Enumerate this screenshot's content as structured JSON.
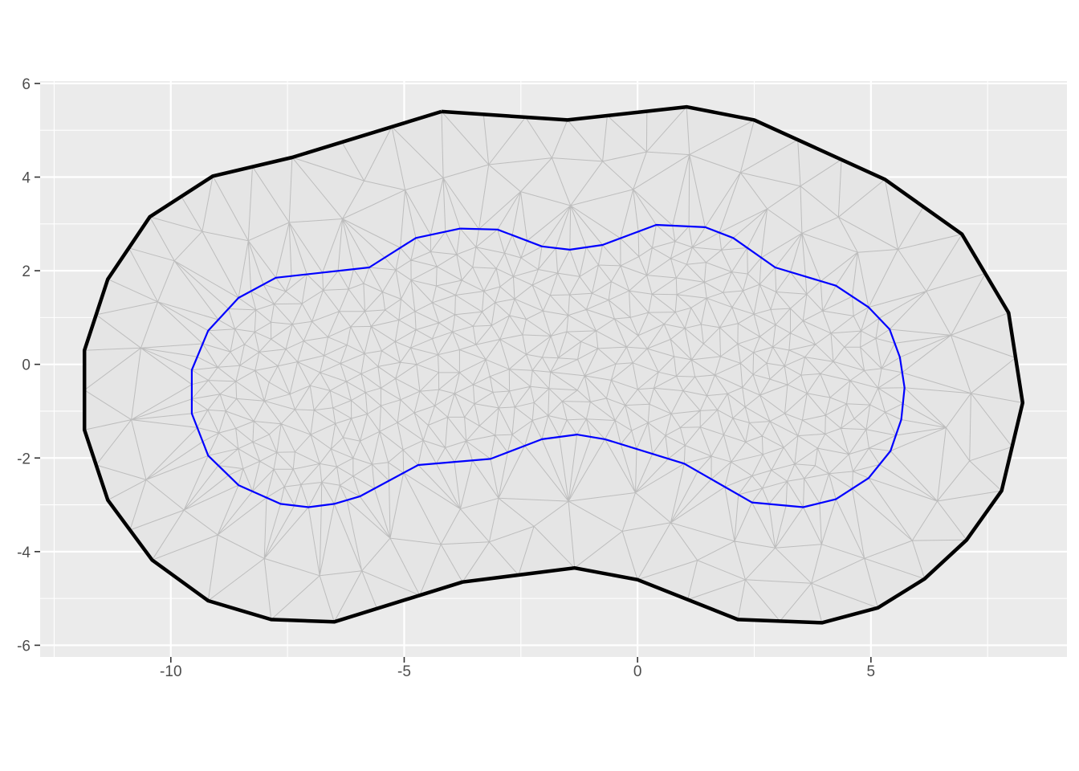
{
  "colors": {
    "panel_background": "#ebebeb",
    "grid": "#ffffff",
    "tick": "#333333",
    "mesh_fill": "#e5e5e5",
    "mesh_edge": "#bdbdbd",
    "outer_boundary": "#000000",
    "inner_boundary": "#0000ff"
  },
  "chart_data": {
    "type": "mesh",
    "title": "",
    "xlabel": "",
    "ylabel": "",
    "xlim": [
      -12.8,
      9.2
    ],
    "ylim": [
      -6.25,
      6.05
    ],
    "x_ticks": [
      {
        "value": -10,
        "label": "-10"
      },
      {
        "value": -5,
        "label": "-5"
      },
      {
        "value": 0,
        "label": "0"
      },
      {
        "value": 5,
        "label": "5"
      }
    ],
    "y_ticks": [
      {
        "value": 6,
        "label": "6"
      },
      {
        "value": 4,
        "label": "4"
      },
      {
        "value": 2,
        "label": "2"
      },
      {
        "value": 0,
        "label": "0"
      },
      {
        "value": -2,
        "label": "-2"
      },
      {
        "value": -4,
        "label": "-4"
      },
      {
        "value": -6,
        "label": "-6"
      }
    ],
    "grid": true,
    "outer_boundary": [
      [
        -4.2,
        5.4
      ],
      [
        -1.5,
        5.22
      ],
      [
        1.05,
        5.5
      ],
      [
        2.5,
        5.22
      ],
      [
        5.3,
        3.95
      ],
      [
        6.95,
        2.78
      ],
      [
        7.95,
        1.1
      ],
      [
        8.25,
        -0.82
      ],
      [
        7.8,
        -2.7
      ],
      [
        7.05,
        -3.75
      ],
      [
        6.15,
        -4.58
      ],
      [
        5.15,
        -5.2
      ],
      [
        3.95,
        -5.52
      ],
      [
        2.15,
        -5.45
      ],
      [
        0,
        -4.6
      ],
      [
        -1.35,
        -4.35
      ],
      [
        -3.75,
        -4.65
      ],
      [
        -6.5,
        -5.5
      ],
      [
        -7.85,
        -5.45
      ],
      [
        -9.2,
        -5.05
      ],
      [
        -10.4,
        -4.18
      ],
      [
        -11.35,
        -2.9
      ],
      [
        -11.85,
        -1.4
      ],
      [
        -11.85,
        0.3
      ],
      [
        -11.35,
        1.82
      ],
      [
        -10.45,
        3.15
      ],
      [
        -9.1,
        4.02
      ],
      [
        -7.4,
        4.42
      ],
      [
        -4.2,
        5.4
      ]
    ],
    "inner_boundary": [
      [
        -3.8,
        2.9
      ],
      [
        -3.0,
        2.88
      ],
      [
        -2.05,
        2.52
      ],
      [
        -1.45,
        2.45
      ],
      [
        -0.75,
        2.55
      ],
      [
        0.4,
        2.98
      ],
      [
        1.45,
        2.93
      ],
      [
        2.05,
        2.7
      ],
      [
        2.95,
        2.07
      ],
      [
        4.25,
        1.68
      ],
      [
        4.95,
        1.22
      ],
      [
        5.4,
        0.75
      ],
      [
        5.62,
        0.15
      ],
      [
        5.72,
        -0.5
      ],
      [
        5.65,
        -1.18
      ],
      [
        5.42,
        -1.85
      ],
      [
        4.95,
        -2.43
      ],
      [
        4.25,
        -2.88
      ],
      [
        3.55,
        -3.05
      ],
      [
        2.45,
        -2.95
      ],
      [
        1.0,
        -2.12
      ],
      [
        -0.7,
        -1.6
      ],
      [
        -1.3,
        -1.5
      ],
      [
        -2.05,
        -1.6
      ],
      [
        -3.15,
        -2.02
      ],
      [
        -4.7,
        -2.15
      ],
      [
        -5.95,
        -2.82
      ],
      [
        -6.5,
        -2.98
      ],
      [
        -7.05,
        -3.05
      ],
      [
        -7.65,
        -2.98
      ],
      [
        -8.55,
        -2.58
      ],
      [
        -9.2,
        -1.95
      ],
      [
        -9.55,
        -1.05
      ],
      [
        -9.55,
        -0.12
      ],
      [
        -9.2,
        0.72
      ],
      [
        -8.55,
        1.42
      ],
      [
        -7.75,
        1.85
      ],
      [
        -5.75,
        2.07
      ],
      [
        -4.75,
        2.7
      ],
      [
        -3.8,
        2.9
      ]
    ]
  }
}
